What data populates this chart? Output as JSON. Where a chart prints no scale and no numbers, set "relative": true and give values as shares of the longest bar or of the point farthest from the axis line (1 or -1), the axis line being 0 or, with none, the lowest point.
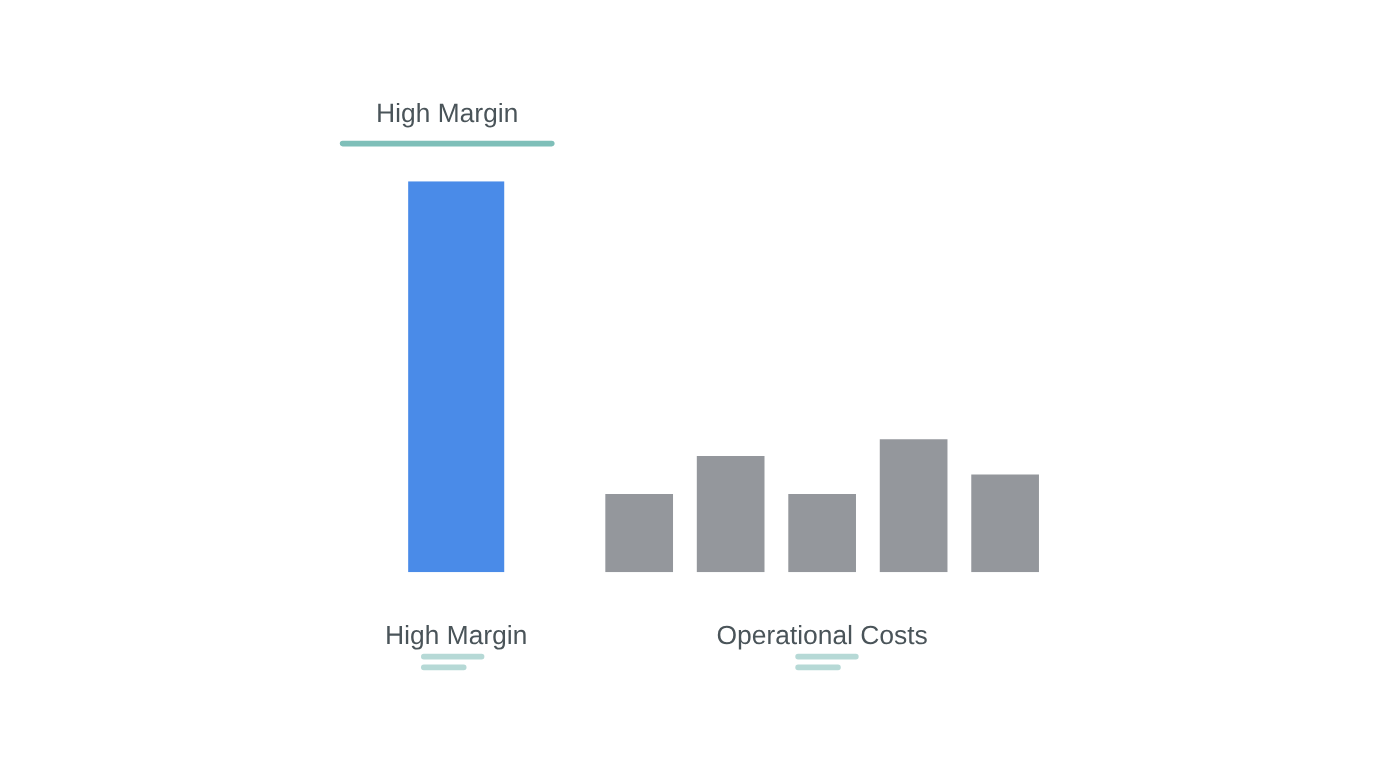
{
  "chart_data": {
    "type": "bar",
    "relative": true,
    "title": "High Margin",
    "categories": [
      "High Margin",
      null,
      null,
      null,
      "Operational Costs",
      null,
      null
    ],
    "values": [
      1,
      null,
      0.2,
      0.297,
      0.2,
      0.34,
      0.25
    ],
    "colors": [
      "#4a8be8",
      null,
      "#94979c",
      "#94979c",
      "#94979c",
      "#94979c",
      "#94979c"
    ],
    "grid": false,
    "legend": false
  }
}
